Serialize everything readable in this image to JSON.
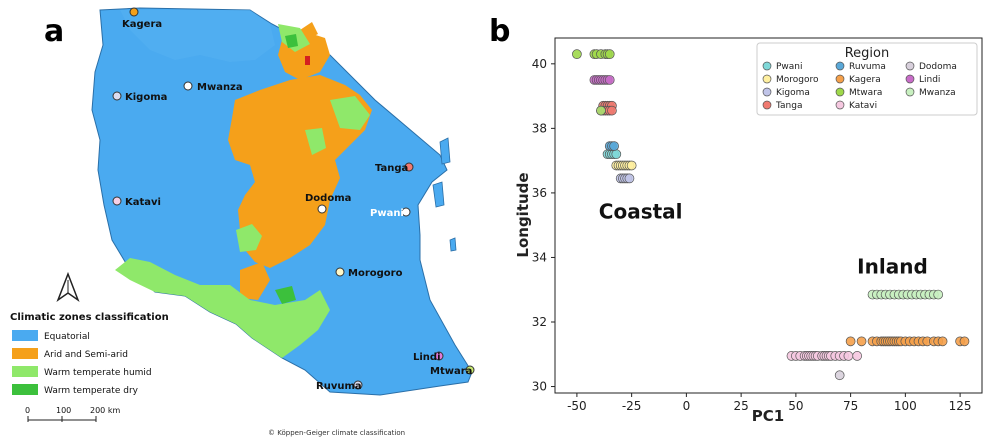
{
  "panel_a": {
    "letter": "a",
    "legend_title": "Climatic zones classification",
    "zones": [
      {
        "label": "Equatorial",
        "color": "#4aaaf0"
      },
      {
        "label": "Arid and Semi-arid",
        "color": "#f5a01a"
      },
      {
        "label": "Warm temperate humid",
        "color": "#8fe86a"
      },
      {
        "label": "Warm temperate dry",
        "color": "#3cc03c"
      }
    ],
    "cities": [
      {
        "name": "Kagera",
        "color": "#f5a01a"
      },
      {
        "name": "Mwanza",
        "color": "#ffffff"
      },
      {
        "name": "Kigoma",
        "color": "#dcdcf0"
      },
      {
        "name": "Tanga",
        "color": "#f07a70"
      },
      {
        "name": "Dodoma",
        "color": "#ffffff"
      },
      {
        "name": "Pwani",
        "color": "#ffffff"
      },
      {
        "name": "Katavi",
        "color": "#f5d0e6"
      },
      {
        "name": "Morogoro",
        "color": "#fff8c8"
      },
      {
        "name": "Lindi",
        "color": "#e07ad8"
      },
      {
        "name": "Mtwara",
        "color": "#c8e870"
      },
      {
        "name": "Ruvuma",
        "color": "#dcdcf0"
      }
    ],
    "scale": {
      "ticks": [
        "0",
        "100",
        "200 km"
      ]
    },
    "credit": "© Köppen-Geiger climate classification"
  },
  "panel_b": {
    "letter": "b"
  },
  "chart_data": {
    "type": "scatter",
    "xlabel": "PC1",
    "ylabel": "Longitude",
    "xlim": [
      -60,
      135
    ],
    "ylim": [
      29.8,
      40.8
    ],
    "xticks": [
      -50,
      -25,
      0,
      25,
      50,
      75,
      100,
      125
    ],
    "yticks": [
      30,
      32,
      34,
      36,
      38,
      40
    ],
    "legend_title": "Region",
    "legend_position": "top-right",
    "annotations": [
      {
        "text": "Coastal",
        "x": -40,
        "y": 35.2
      },
      {
        "text": "Inland",
        "x": 78,
        "y": 33.5
      }
    ],
    "series": [
      {
        "name": "Pwani",
        "color": "#7fd8d8",
        "y": 37.2,
        "x": [
          -36,
          -35,
          -34,
          -33,
          -32
        ]
      },
      {
        "name": "Morogoro",
        "color": "#fff0a0",
        "y": 36.85,
        "x": [
          -32,
          -31,
          -30,
          -29,
          -28,
          -27,
          -26,
          -25
        ]
      },
      {
        "name": "Kigoma",
        "color": "#c0c4e8",
        "y": 36.45,
        "x": [
          -30,
          -29,
          -28,
          -27,
          -26
        ]
      },
      {
        "name": "Tanga",
        "color": "#f07a70",
        "y": 38.7,
        "x": [
          -38,
          -37,
          -36,
          -35,
          -34
        ]
      },
      {
        "name": "Ruvuma",
        "color": "#5aa8d8",
        "y": 37.45,
        "x": [
          -35,
          -34,
          -33
        ]
      },
      {
        "name": "Kagera",
        "color": "#f5a04a",
        "y": 31.4,
        "x": [
          75,
          80,
          85,
          87,
          89,
          90,
          91,
          92,
          93,
          94,
          95,
          96,
          97,
          98,
          100,
          102,
          104,
          106,
          108,
          110,
          113,
          115,
          117,
          125,
          127
        ]
      },
      {
        "name": "Mtwara",
        "color": "#9ed84a",
        "y": 40.3,
        "x": [
          -50,
          -42,
          -41,
          -39,
          -37,
          -36,
          -35
        ]
      },
      {
        "name": "Katavi",
        "color": "#f5c8e0",
        "y": 30.95,
        "x": [
          48,
          50,
          52,
          54,
          55,
          56,
          57,
          58,
          59,
          60,
          62,
          63,
          64,
          65,
          66,
          68,
          70,
          72,
          74,
          78
        ]
      },
      {
        "name": "Dodoma",
        "color": "#d8d0dc",
        "y": 30.35,
        "x": [
          70
        ]
      },
      {
        "name": "Lindi",
        "color": "#c86cc8",
        "y": 39.5,
        "x": [
          -42,
          -41,
          -40,
          -39,
          -38,
          -37,
          -36,
          -35
        ]
      },
      {
        "name": "Mwanza",
        "color": "#c8f0c0",
        "y": 32.85,
        "x": [
          85,
          87,
          89,
          91,
          93,
          95,
          97,
          99,
          101,
          103,
          105,
          107,
          109,
          111,
          113,
          115
        ]
      },
      {
        "name": "",
        "color": "#f07a70",
        "y": 38.55,
        "x": [
          -39,
          -38,
          -37,
          -36,
          -35,
          -34
        ]
      },
      {
        "name": "",
        "color": "#a8e070",
        "y": 38.55,
        "x": [
          -39
        ]
      }
    ]
  }
}
